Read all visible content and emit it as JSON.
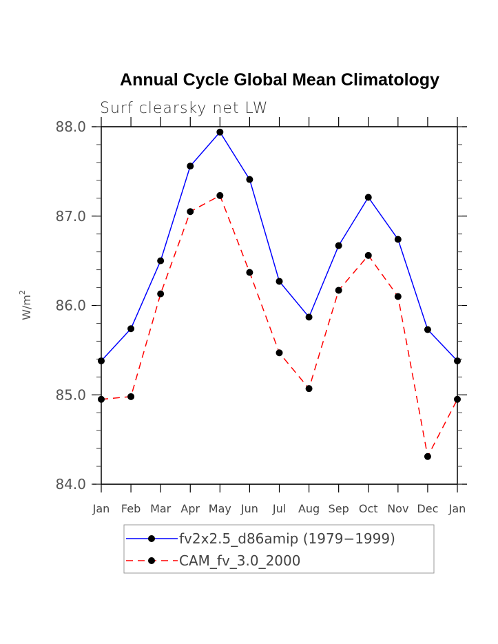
{
  "chart_data": {
    "type": "line",
    "title": "Annual Cycle Global Mean Climatology",
    "subtitle": "Surf clearsky net LW",
    "xlabel": "",
    "ylabel": "W/m",
    "ylabel_superscript": "2",
    "categories": [
      "Jan",
      "Feb",
      "Mar",
      "Apr",
      "May",
      "Jun",
      "Jul",
      "Aug",
      "Sep",
      "Oct",
      "Nov",
      "Dec",
      "Jan"
    ],
    "ylim": [
      84.0,
      88.0
    ],
    "yticks": [
      "84.0",
      "85.0",
      "86.0",
      "87.0",
      "88.0"
    ],
    "ytick_values": [
      84.0,
      85.0,
      86.0,
      87.0,
      88.0
    ],
    "yminor_step": 0.2,
    "grid": false,
    "legend_position": "bottom",
    "series": [
      {
        "name": "fv2x2.5_d86amip (1979−1999)",
        "color": "#0000ff",
        "dash": "solid",
        "marker": "filled-circle",
        "values": [
          85.38,
          85.74,
          86.5,
          87.56,
          87.94,
          87.41,
          86.27,
          85.87,
          86.67,
          87.21,
          86.74,
          85.73,
          85.38
        ]
      },
      {
        "name": "CAM_fv_3.0_2000",
        "color": "#ff0000",
        "dash": "dashed",
        "marker": "filled-circle",
        "values": [
          84.95,
          84.98,
          86.13,
          87.05,
          87.23,
          86.37,
          85.47,
          85.07,
          86.17,
          86.56,
          86.1,
          84.31,
          84.95
        ]
      }
    ]
  }
}
